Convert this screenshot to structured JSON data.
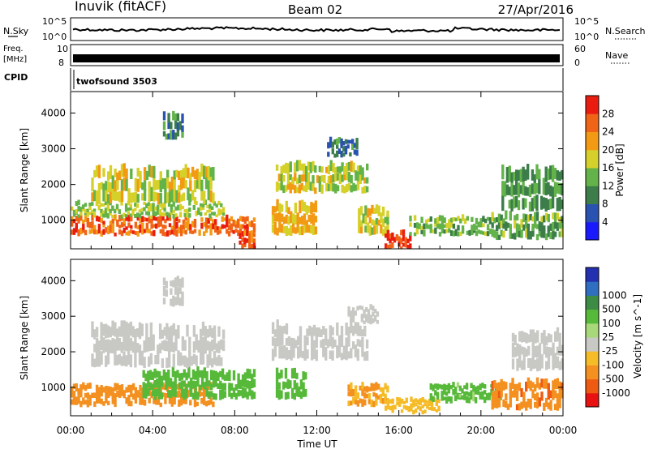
{
  "header": {
    "station": "Inuvik (fitACF)",
    "beam": "Beam 02",
    "date": "27/Apr/2016"
  },
  "top_panels": {
    "nsky_label": "N.Sky",
    "nsky_ticks": [
      "10^5",
      "10^0"
    ],
    "nsearch_label": "N.Search",
    "nsearch_ticks": [
      "10^5",
      "10^0"
    ],
    "freq_label_1": "Freq.",
    "freq_label_2": "[MHz]",
    "freq_ticks": [
      "10",
      "8"
    ],
    "nave_label": "Nave",
    "nave_ticks": [
      "60",
      "0"
    ],
    "cpid_label": "CPID",
    "cpid_value": "twofsound 3503"
  },
  "colors": {
    "power_scale": [
      "#1a1aff",
      "#2a52b0",
      "#3c7d4a",
      "#63b34a",
      "#d6d02a",
      "#f29a14",
      "#f06418",
      "#ea1c10"
    ],
    "velocity_scale": [
      "#e81010",
      "#ef5a12",
      "#f39020",
      "#f5bc28",
      "#c8c8c4",
      "#a8d879",
      "#57b93a",
      "#3e8b45",
      "#2f6ec0",
      "#2330b0"
    ]
  },
  "chart_data": [
    {
      "type": "heatmap",
      "name": "power",
      "ylabel": "Slant Range [km]",
      "yticks": [
        "1000",
        "2000",
        "3000",
        "4000"
      ],
      "ylim": [
        200,
        4600
      ],
      "colorbar_label": "Power [dB]",
      "colorbar_ticks": [
        "4",
        "8",
        "12",
        "16",
        "20",
        "24",
        "28"
      ],
      "clim": [
        0,
        32
      ],
      "regions": [
        {
          "t0": 0.0,
          "t1": 9.0,
          "r0": 600,
          "r1": 1100,
          "value": 26
        },
        {
          "t0": 0.0,
          "t1": 7.5,
          "r0": 1100,
          "r1": 1500,
          "value": 16
        },
        {
          "t0": 1.0,
          "t1": 7.0,
          "r0": 1500,
          "r1": 2500,
          "value": 18
        },
        {
          "t0": 4.5,
          "t1": 5.5,
          "r0": 3300,
          "r1": 4000,
          "value": 10
        },
        {
          "t0": 8.2,
          "t1": 9.0,
          "r0": 200,
          "r1": 700,
          "value": 27
        },
        {
          "t0": 9.8,
          "t1": 12.0,
          "r0": 600,
          "r1": 1500,
          "value": 20
        },
        {
          "t0": 10.0,
          "t1": 14.5,
          "r0": 1800,
          "r1": 2600,
          "value": 17
        },
        {
          "t0": 12.5,
          "t1": 14.0,
          "r0": 2800,
          "r1": 3300,
          "value": 9
        },
        {
          "t0": 14.0,
          "t1": 15.5,
          "r0": 600,
          "r1": 1400,
          "value": 18
        },
        {
          "t0": 15.3,
          "t1": 16.6,
          "r0": 200,
          "r1": 700,
          "value": 29
        },
        {
          "t0": 16.5,
          "t1": 20.5,
          "r0": 600,
          "r1": 1100,
          "value": 14
        },
        {
          "t0": 20.5,
          "t1": 24.0,
          "r0": 500,
          "r1": 1200,
          "value": 13
        },
        {
          "t0": 21.0,
          "t1": 24.0,
          "r0": 1300,
          "r1": 2500,
          "value": 12
        }
      ]
    },
    {
      "type": "heatmap",
      "name": "velocity",
      "ylabel": "Slant Range [km]",
      "yticks": [
        "1000",
        "2000",
        "3000",
        "4000"
      ],
      "ylim": [
        200,
        4600
      ],
      "xlabel": "Time UT",
      "xticks": [
        "00:00",
        "04:00",
        "08:00",
        "12:00",
        "16:00",
        "20:00",
        "00:00"
      ],
      "xlim": [
        0,
        24
      ],
      "colorbar_label": "Velocity [m s^-1]",
      "colorbar_ticks": [
        "-1000",
        "-500",
        "-100",
        "-25",
        "25",
        "100",
        "500",
        "1000"
      ],
      "regions": [
        {
          "t0": 0.0,
          "t1": 7.0,
          "r0": 500,
          "r1": 1100,
          "value": -300
        },
        {
          "t0": 3.5,
          "t1": 9.0,
          "r0": 700,
          "r1": 1500,
          "value": 200
        },
        {
          "t0": 1.0,
          "t1": 7.5,
          "r0": 1600,
          "r1": 2800,
          "value": 0
        },
        {
          "t0": 4.5,
          "t1": 5.5,
          "r0": 3300,
          "r1": 4100,
          "value": 0
        },
        {
          "t0": 9.8,
          "t1": 14.5,
          "r0": 1800,
          "r1": 2800,
          "value": 0
        },
        {
          "t0": 10.0,
          "t1": 11.5,
          "r0": 700,
          "r1": 1500,
          "value": 200
        },
        {
          "t0": 13.5,
          "t1": 15.5,
          "r0": 500,
          "r1": 1100,
          "value": -120
        },
        {
          "t0": 15.3,
          "t1": 18.0,
          "r0": 300,
          "r1": 700,
          "value": -60
        },
        {
          "t0": 17.5,
          "t1": 21.0,
          "r0": 600,
          "r1": 1100,
          "value": 150
        },
        {
          "t0": 20.5,
          "t1": 24.0,
          "r0": 400,
          "r1": 1200,
          "value": -400
        },
        {
          "t0": 21.5,
          "t1": 24.0,
          "r0": 1500,
          "r1": 2600,
          "value": 0
        },
        {
          "t0": 13.5,
          "t1": 15.0,
          "r0": 2800,
          "r1": 3300,
          "value": 0
        }
      ]
    }
  ]
}
